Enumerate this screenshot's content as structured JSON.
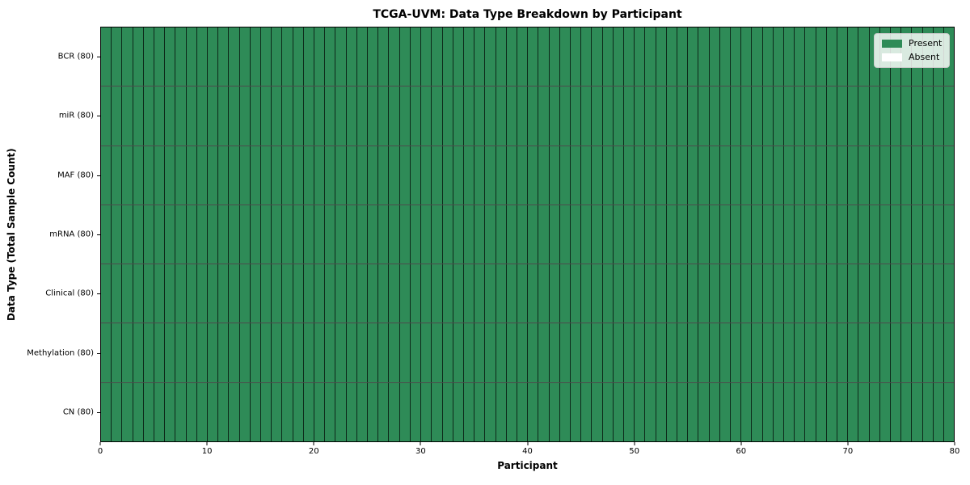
{
  "chart_data": {
    "type": "heatmap",
    "title": "TCGA-UVM: Data Type Breakdown by Participant",
    "xlabel": "Participant",
    "ylabel": "Data Type (Total Sample Count)",
    "xlim": [
      0,
      80
    ],
    "x_ticks": [
      0,
      10,
      20,
      30,
      40,
      50,
      60,
      70,
      80
    ],
    "n_participants": 80,
    "rows": [
      {
        "label": "BCR (80)",
        "data_type": "BCR",
        "total_samples": 80,
        "present_count": 80
      },
      {
        "label": "miR (80)",
        "data_type": "miR",
        "total_samples": 80,
        "present_count": 80
      },
      {
        "label": "MAF (80)",
        "data_type": "MAF",
        "total_samples": 80,
        "present_count": 80
      },
      {
        "label": "mRNA (80)",
        "data_type": "mRNA",
        "total_samples": 80,
        "present_count": 80
      },
      {
        "label": "Clinical (80)",
        "data_type": "Clinical",
        "total_samples": 80,
        "present_count": 80
      },
      {
        "label": "Methylation (80)",
        "data_type": "Methylation",
        "total_samples": 80,
        "present_count": 80
      },
      {
        "label": "CN (80)",
        "data_type": "CN",
        "total_samples": 80,
        "present_count": 80
      }
    ],
    "legend": {
      "position": "upper right",
      "entries": [
        {
          "label": "Present",
          "color": "#2e8b57"
        },
        {
          "label": "Absent",
          "color": "#ffffff"
        }
      ]
    },
    "colors": {
      "present": "#2e8b57",
      "absent": "#ffffff",
      "cell_border": "rgba(0,0,0,0.7)",
      "spine": "#000000"
    }
  }
}
